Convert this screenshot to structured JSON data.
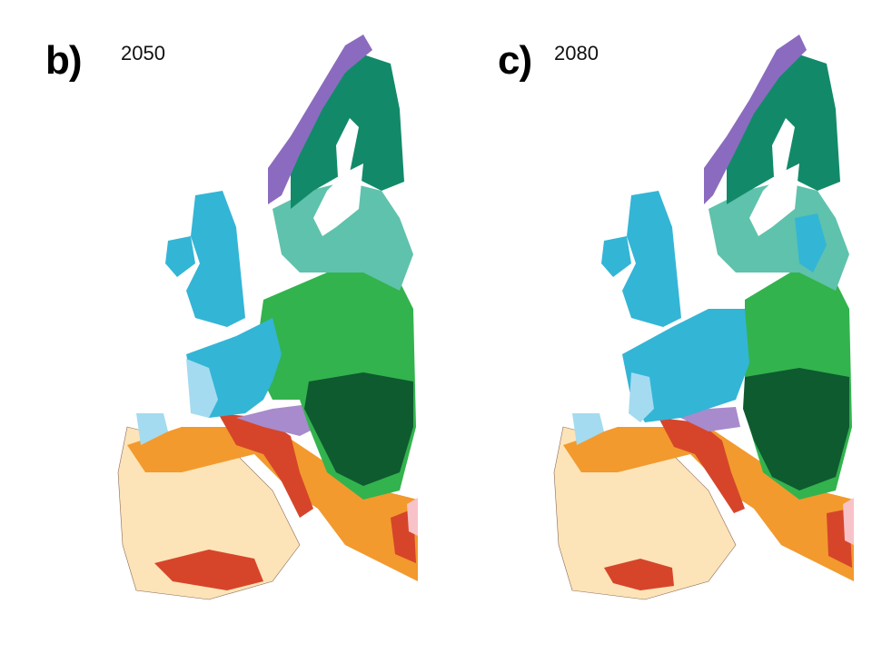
{
  "panels": [
    {
      "id": "b",
      "letter": "b)",
      "year": "2050"
    },
    {
      "id": "c",
      "letter": "c)",
      "year": "2080"
    }
  ],
  "colors": {
    "boreal_purple": "#8b6bbf",
    "boreal_green": "#128a6a",
    "mixed_teal": "#5fc2ac",
    "atlantic_blue": "#33b5d6",
    "atlantic_light": "#a4dbf0",
    "continental_green": "#33b34d",
    "steppe_dark": "#0e5b30",
    "alpine_lavender": "#a88bcc",
    "mediterranean_orange": "#f29a2e",
    "mediterranean_red": "#d6452a",
    "dry_beige": "#fde3b8",
    "pink": "#f8c3c8",
    "outline": "#8a6a5a"
  }
}
